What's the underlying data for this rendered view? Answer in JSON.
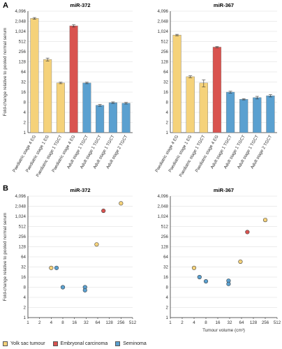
{
  "panels": {
    "A": "A",
    "B": "B"
  },
  "colors": {
    "yolk_sac": "#f5d27a",
    "embryonal": "#d9534f",
    "seminoma": "#5aa0d0",
    "grid": "#d9d9d9",
    "axis": "#333333"
  },
  "legend": {
    "yolk_sac": "Yolk sac tumour",
    "embryonal": "Embryonal carcinoma",
    "seminoma": "Seminoma"
  },
  "chart_data": [
    {
      "type": "bar",
      "panel": "A",
      "title": "miR-372",
      "ylabel": "Fold-change relative to pooled normal serum",
      "yscale": "log2",
      "ylim": [
        1,
        4096
      ],
      "yticks": [
        "1",
        "2",
        "4",
        "8",
        "16",
        "32",
        "64",
        "128",
        "256",
        "512",
        "1,024",
        "2,048",
        "4,096"
      ],
      "categories": [
        "Paediatric stage 4 EG",
        "Paediatric stage 1 EG",
        "Paediatric stage 1 TGCT",
        "Paediatric stage 4 EG",
        "Adult stage 1 TGCT",
        "Adult stage 1 TGCT",
        "Adult stage 1 TGCT",
        "Adult stage 2 TGCT"
      ],
      "values": [
        2500,
        150,
        30,
        1500,
        30,
        6.5,
        7.8,
        7.5
      ],
      "errors": [
        150,
        15,
        1.5,
        120,
        1.5,
        0.4,
        0.4,
        0.4
      ],
      "bar_groups": [
        "yolk_sac",
        "yolk_sac",
        "yolk_sac",
        "embryonal",
        "seminoma",
        "seminoma",
        "seminoma",
        "seminoma"
      ]
    },
    {
      "type": "bar",
      "panel": "A",
      "title": "miR-367",
      "ylabel": "",
      "yscale": "log2",
      "ylim": [
        1,
        4096
      ],
      "yticks": [
        "1",
        "2",
        "4",
        "8",
        "16",
        "32",
        "64",
        "128",
        "256",
        "512",
        "1,024",
        "2,048",
        "4,096"
      ],
      "categories": [
        "Paediatric stage 4 EG",
        "Paediatric stage 1 EG",
        "Paediatric stage 1 TGCT",
        "Paediatric stage 4 EG",
        "Adult stage 1 TGCT",
        "Adult stage 1 TGCT",
        "Adult stage 1 TGCT",
        "Adult stage 2 TGCT"
      ],
      "values": [
        800,
        46,
        30,
        350,
        16,
        9.8,
        11,
        12.5
      ],
      "errors": [
        40,
        3,
        7,
        15,
        1,
        0.4,
        1,
        1
      ],
      "bar_groups": [
        "yolk_sac",
        "yolk_sac",
        "yolk_sac",
        "embryonal",
        "seminoma",
        "seminoma",
        "seminoma",
        "seminoma"
      ]
    },
    {
      "type": "scatter",
      "panel": "B",
      "title": "miR-372",
      "ylabel": "Fold-change relative to pooled normal serum",
      "xlabel": "",
      "xscale": "log2",
      "yscale": "log2",
      "xlim": [
        1,
        512
      ],
      "ylim": [
        1,
        4096
      ],
      "xticks": [
        "1",
        "2",
        "4",
        "8",
        "16",
        "32",
        "64",
        "128",
        "256",
        "512"
      ],
      "yticks": [
        "1",
        "2",
        "4",
        "8",
        "16",
        "32",
        "64",
        "128",
        "256",
        "512",
        "1,024",
        "2,048",
        "4,096"
      ],
      "points": [
        {
          "x": 4,
          "y": 30,
          "group": "yolk_sac"
        },
        {
          "x": 60,
          "y": 150,
          "group": "yolk_sac"
        },
        {
          "x": 256,
          "y": 2500,
          "group": "yolk_sac"
        },
        {
          "x": 90,
          "y": 1500,
          "group": "embryonal"
        },
        {
          "x": 5.5,
          "y": 30,
          "group": "seminoma"
        },
        {
          "x": 8,
          "y": 8,
          "group": "seminoma"
        },
        {
          "x": 30,
          "y": 8,
          "group": "seminoma"
        },
        {
          "x": 30,
          "y": 6.5,
          "group": "seminoma"
        }
      ]
    },
    {
      "type": "scatter",
      "panel": "B",
      "title": "miR-367",
      "ylabel": "",
      "xlabel": "Tumour volume (cm³)",
      "xscale": "log2",
      "yscale": "log2",
      "xlim": [
        1,
        512
      ],
      "ylim": [
        1,
        4096
      ],
      "xticks": [
        "1",
        "2",
        "4",
        "8",
        "16",
        "32",
        "64",
        "128",
        "256",
        "512"
      ],
      "yticks": [
        "1",
        "2",
        "4",
        "8",
        "16",
        "32",
        "64",
        "128",
        "256",
        "512",
        "1,024",
        "2,048",
        "4,096"
      ],
      "points": [
        {
          "x": 4,
          "y": 30,
          "group": "yolk_sac"
        },
        {
          "x": 60,
          "y": 46,
          "group": "yolk_sac"
        },
        {
          "x": 256,
          "y": 800,
          "group": "yolk_sac"
        },
        {
          "x": 90,
          "y": 350,
          "group": "embryonal"
        },
        {
          "x": 5.5,
          "y": 16,
          "group": "seminoma"
        },
        {
          "x": 8,
          "y": 12,
          "group": "seminoma"
        },
        {
          "x": 30,
          "y": 12.5,
          "group": "seminoma"
        },
        {
          "x": 30,
          "y": 10,
          "group": "seminoma"
        }
      ]
    }
  ]
}
